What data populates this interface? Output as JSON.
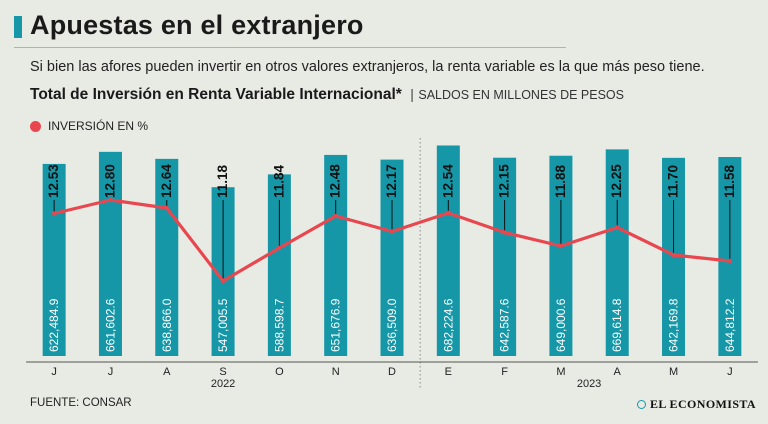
{
  "header": {
    "title": "Apuestas en el extranjero",
    "subtitle": "Si bien las afores pueden invertir en otros valores extranjeros, la renta variable es la que más peso tiene."
  },
  "chart_data": {
    "type": "bar",
    "title": "Total de Inversión en Renta Variable Internacional*",
    "separator": "|",
    "unit_label": "SALDOS EN MILLONES DE PESOS",
    "categories": [
      "J",
      "J",
      "A",
      "S",
      "O",
      "N",
      "D",
      "E",
      "F",
      "M",
      "A",
      "M",
      "J"
    ],
    "year_groups": [
      {
        "label": "2022",
        "start": 0,
        "end": 6
      },
      {
        "label": "2023",
        "start": 7,
        "end": 12
      }
    ],
    "series": [
      {
        "name": "Saldos en millones de pesos",
        "type": "bar",
        "values": [
          622484.9,
          661602.6,
          638866.0,
          547005.5,
          588598.7,
          651676.9,
          636509.0,
          682224.6,
          642587.6,
          649000.6,
          669614.8,
          642169.8,
          644812.2
        ],
        "labels": [
          "622,484.9",
          "661,602.6",
          "638,866.0",
          "547,005.5",
          "588,598.7",
          "651,676.9",
          "636,509.0",
          "682,224.6",
          "642,587.6",
          "649,000.6",
          "669,614.8",
          "642,169.8",
          "644,812.2"
        ],
        "color": "#1597a8"
      },
      {
        "name": "INVERSIÓN EN %",
        "type": "line",
        "values": [
          12.53,
          12.8,
          12.64,
          11.18,
          11.84,
          12.48,
          12.17,
          12.54,
          12.15,
          11.88,
          12.25,
          11.7,
          11.58
        ],
        "labels": [
          "12.53",
          "12.80",
          "12.64",
          "11.18",
          "11.84",
          "12.48",
          "12.17",
          "12.54",
          "12.15",
          "11.88",
          "12.25",
          "11.70",
          "11.58"
        ],
        "color": "#e8474f"
      }
    ],
    "legend": "INVERSIÓN EN %",
    "legend_position": "top-left",
    "bar_ylim": [
      0,
      700000
    ],
    "line_ylim": [
      11.0,
      13.0
    ]
  },
  "footer": {
    "source": "FUENTE: CONSAR",
    "brand": "EL ECONOMISTA"
  },
  "colors": {
    "background": "#e8ebe4",
    "bar": "#1597a8",
    "line": "#e8474f",
    "bar_text": "#ffffff"
  }
}
